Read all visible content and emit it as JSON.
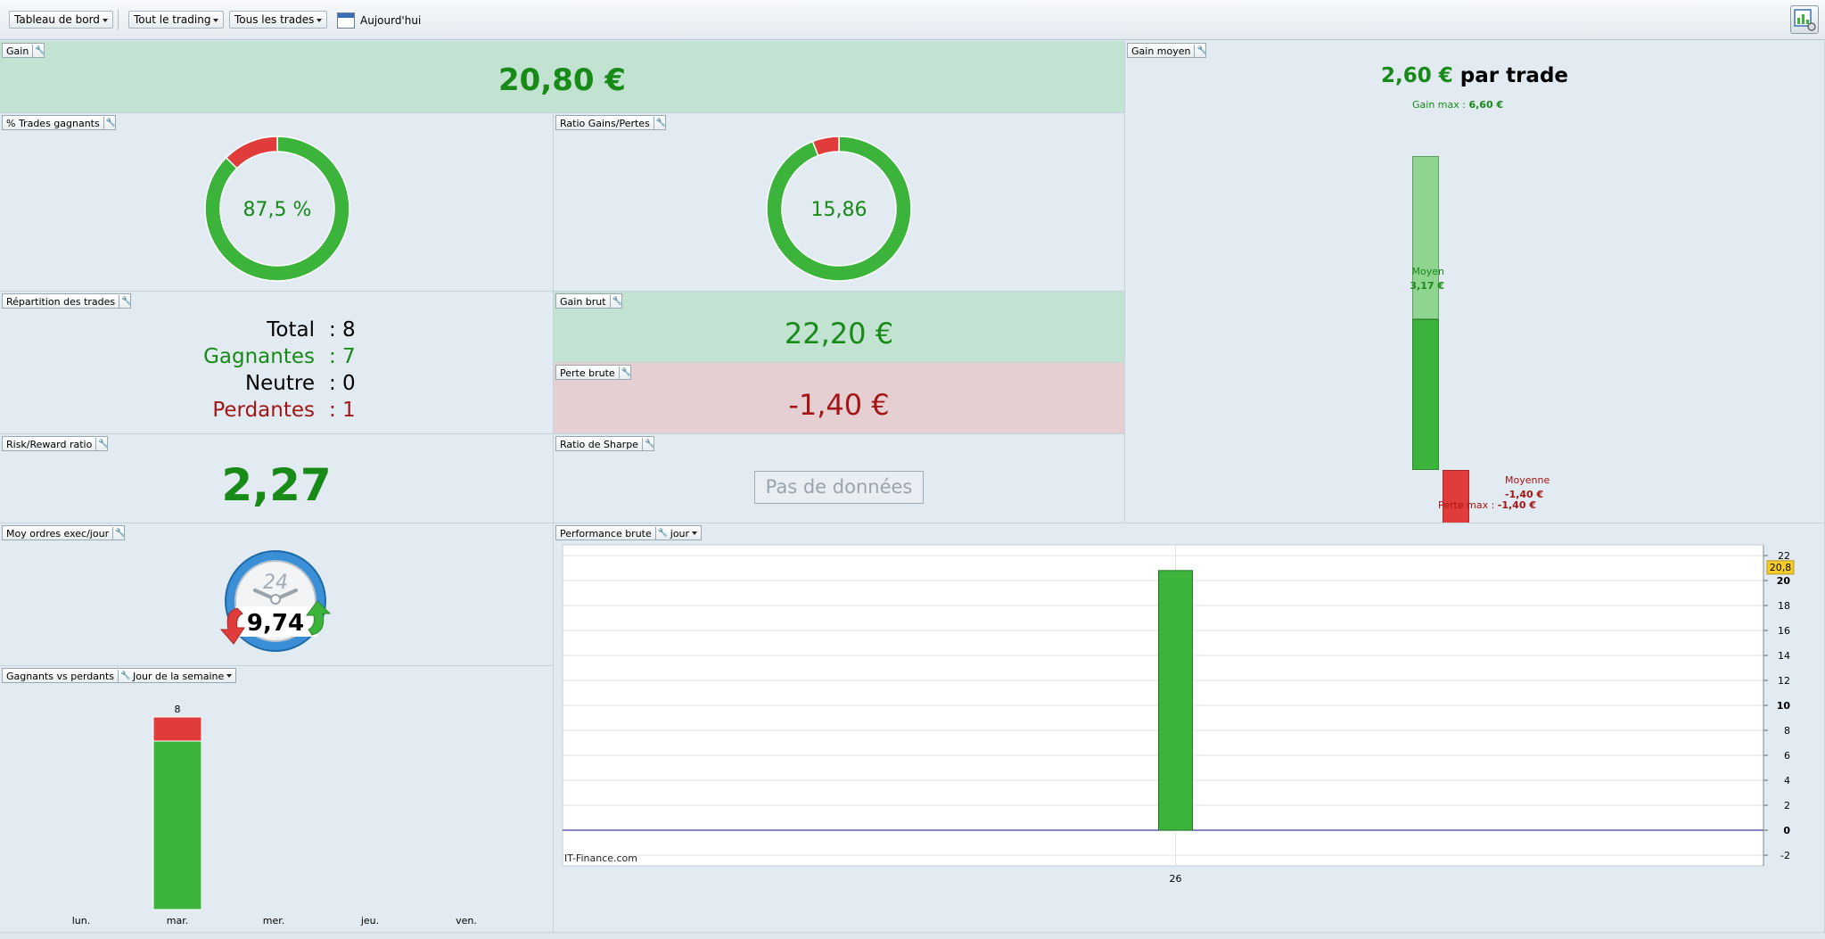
{
  "toolbar": {
    "dashboard": "Tableau de bord",
    "trading_filter": "Tout le trading",
    "trades_filter": "Tous les trades",
    "today": "Aujourd'hui"
  },
  "gain": {
    "title": "Gain",
    "value": "20,80 €"
  },
  "gain_moyen": {
    "title": "Gain moyen",
    "value": "2,60 €",
    "suffix": "par trade",
    "gain_max_label": "Gain max :",
    "gain_max_value": "6,60 €",
    "moyen_label": "Moyen",
    "moyen_value": "3,17 €",
    "moyenne_label": "Moyenne",
    "moyenne_value": "-1,40 €",
    "perte_max_label": "Perte max :",
    "perte_max_value": "-1,40 €",
    "gain_max_num": 6.6,
    "moyen_num": 3.17,
    "moyenne_num": -1.4,
    "perte_max_num": -1.4
  },
  "pct_gagnants": {
    "title": "% Trades gagnants",
    "value": "87,5 %",
    "fraction": 0.875
  },
  "ratio_gains_pertes": {
    "title": "Ratio Gains/Pertes",
    "value": "15,86",
    "fraction": 0.9407
  },
  "repartition": {
    "title": "Répartition des trades",
    "rows": [
      {
        "label": "Total",
        "value": ": 8",
        "color": "#000000"
      },
      {
        "label": "Gagnantes",
        "value": ": 7",
        "color": "#178a17"
      },
      {
        "label": "Neutre",
        "value": ": 0",
        "color": "#000000"
      },
      {
        "label": "Perdantes",
        "value": ": 1",
        "color": "#a31515"
      }
    ]
  },
  "gain_brut": {
    "title": "Gain brut",
    "value": "22,20 €"
  },
  "perte_brute": {
    "title": "Perte brute",
    "value": "-1,40 €"
  },
  "risk_reward": {
    "title": "Risk/Reward ratio",
    "value": "2,27"
  },
  "sharpe": {
    "title": "Ratio de Sharpe",
    "value": "Pas de données"
  },
  "ordres": {
    "title": "Moy ordres exec/jour",
    "value": "9,74",
    "dial_label": "24"
  },
  "gagnants_perdants": {
    "title": "Gagnants vs perdants",
    "mode": "Jour de la semaine"
  },
  "performance": {
    "title": "Performance brute",
    "mode": "jour",
    "watermark": "IT-Finance.com",
    "marker": "20,8"
  },
  "colors": {
    "green": "#3cb43c",
    "light_green": "#8fd48f",
    "red": "#e03c3c",
    "light_red": "#eda0a0",
    "text_green": "#178a17",
    "text_red": "#a31515",
    "panel": "#e2ebf1",
    "panel_green": "#c3e3d2",
    "panel_red": "#e6cfd3"
  },
  "chart_data": [
    {
      "type": "bar",
      "categories": [
        "lun.",
        "mar.",
        "mer.",
        "jeu.",
        "ven."
      ],
      "series": [
        {
          "values": [
            0,
            7,
            0,
            0,
            0
          ],
          "color": "#3cb43c"
        },
        {
          "values": [
            0,
            1,
            0,
            0,
            0
          ],
          "color": "#e03c3c"
        }
      ],
      "totals": [
        null,
        8,
        null,
        null,
        null
      ],
      "stacked": true,
      "ylim": [
        0,
        8
      ]
    },
    {
      "type": "bar",
      "categories": [
        "26"
      ],
      "values": [
        20.8
      ],
      "yticks": [
        22,
        20,
        18,
        16,
        14,
        12,
        10,
        8,
        6,
        4,
        2,
        0,
        -2
      ],
      "ylim": [
        -2,
        23
      ],
      "grid": true,
      "axis_side": "right"
    }
  ]
}
